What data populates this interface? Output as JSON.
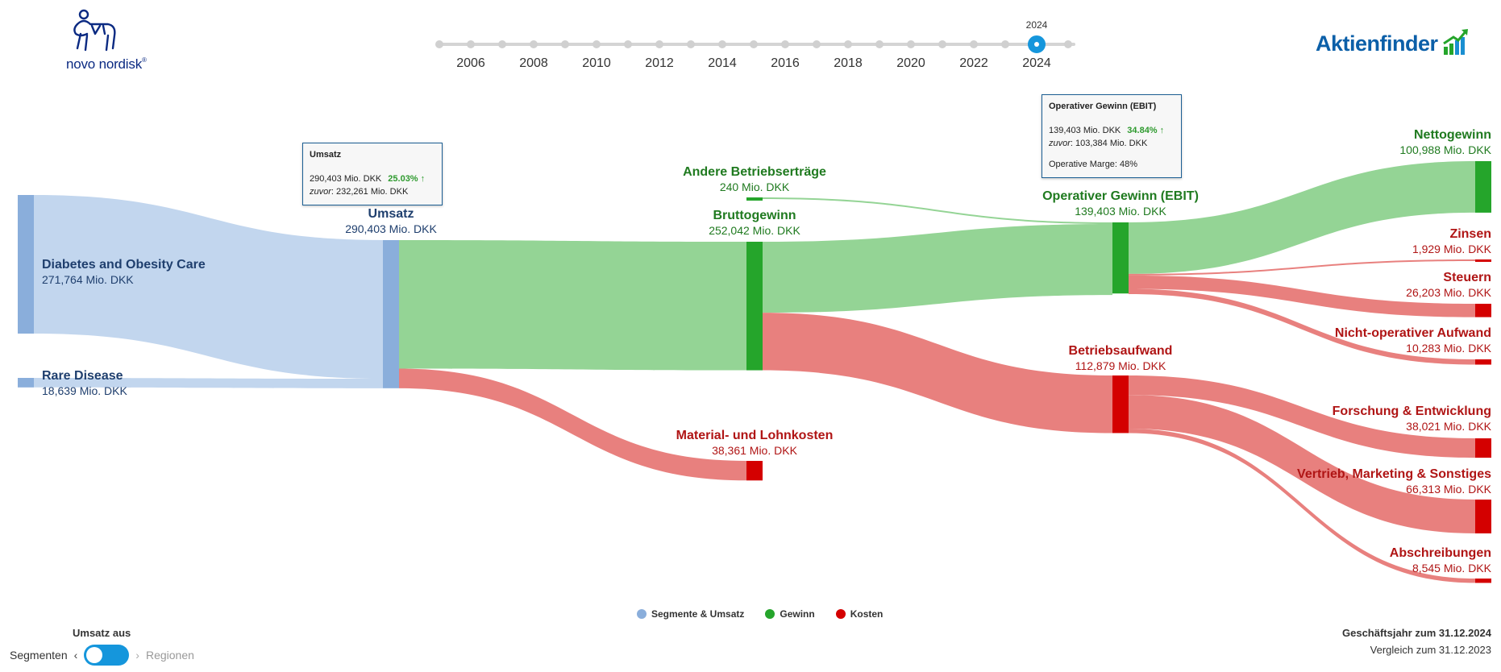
{
  "header": {
    "company_logo_text": "novo nordisk",
    "company_logo_reg": "®",
    "brand": "Aktienfinder"
  },
  "timeline": {
    "current_year": "2024",
    "year_labels": [
      "2006",
      "2008",
      "2010",
      "2012",
      "2014",
      "2016",
      "2018",
      "2020",
      "2022",
      "2024"
    ]
  },
  "colors": {
    "segment": "#8aaedb",
    "segment_flow": "#c2d6ee",
    "segment_text": "#1f3f6e",
    "profit": "#25a52b",
    "profit_flow": "#94d495",
    "profit_text": "#1f7a1f",
    "cost": "#d40000",
    "cost_flow": "#e8807e",
    "cost_text": "#b01515",
    "accent": "#1596dc"
  },
  "chart_data": {
    "type": "sankey",
    "unit": "Mio. DKK",
    "nodes": [
      {
        "id": "diabetes",
        "name": "Diabetes and Obesity Care",
        "value": 271764,
        "value_label": "271,764 Mio. DKK",
        "category": "segment"
      },
      {
        "id": "rare",
        "name": "Rare Disease",
        "value": 18639,
        "value_label": "18,639 Mio. DKK",
        "category": "segment"
      },
      {
        "id": "umsatz",
        "name": "Umsatz",
        "value": 290403,
        "value_label": "290,403 Mio. DKK",
        "category": "segment"
      },
      {
        "id": "andere",
        "name": "Andere Betriebserträge",
        "value": 240,
        "value_label": "240 Mio. DKK",
        "category": "profit"
      },
      {
        "id": "brutto",
        "name": "Bruttogewinn",
        "value": 252042,
        "value_label": "252,042 Mio. DKK",
        "category": "profit"
      },
      {
        "id": "material",
        "name": "Material- und Lohnkosten",
        "value": 38361,
        "value_label": "38,361 Mio. DKK",
        "category": "cost"
      },
      {
        "id": "ebit",
        "name": "Operativer Gewinn (EBIT)",
        "value": 139403,
        "value_label": "139,403 Mio. DKK",
        "category": "profit"
      },
      {
        "id": "betrieb",
        "name": "Betriebsaufwand",
        "value": 112879,
        "value_label": "112,879 Mio. DKK",
        "category": "cost"
      },
      {
        "id": "netto",
        "name": "Nettogewinn",
        "value": 100988,
        "value_label": "100,988 Mio. DKK",
        "category": "profit"
      },
      {
        "id": "zinsen",
        "name": "Zinsen",
        "value": 1929,
        "value_label": "1,929 Mio. DKK",
        "category": "cost"
      },
      {
        "id": "steuern",
        "name": "Steuern",
        "value": 26203,
        "value_label": "26,203 Mio. DKK",
        "category": "cost"
      },
      {
        "id": "nichtop",
        "name": "Nicht-operativer Aufwand",
        "value": 10283,
        "value_label": "10,283 Mio. DKK",
        "category": "cost"
      },
      {
        "id": "fue",
        "name": "Forschung & Entwicklung",
        "value": 38021,
        "value_label": "38,021 Mio. DKK",
        "category": "cost"
      },
      {
        "id": "vertrieb",
        "name": "Vertrieb, Marketing & Sonstiges",
        "value": 66313,
        "value_label": "66,313 Mio. DKK",
        "category": "cost"
      },
      {
        "id": "abschr",
        "name": "Abschreibungen",
        "value": 8545,
        "value_label": "8,545 Mio. DKK",
        "category": "cost"
      }
    ],
    "links": [
      {
        "source": "diabetes",
        "target": "umsatz",
        "value": 271764
      },
      {
        "source": "rare",
        "target": "umsatz",
        "value": 18639
      },
      {
        "source": "umsatz",
        "target": "brutto",
        "value": 252042
      },
      {
        "source": "umsatz",
        "target": "material",
        "value": 38361
      },
      {
        "source": "andere",
        "target": "ebit",
        "value": 240
      },
      {
        "source": "brutto",
        "target": "ebit",
        "value": 139163
      },
      {
        "source": "brutto",
        "target": "betrieb",
        "value": 112879
      },
      {
        "source": "ebit",
        "target": "netto",
        "value": 100988
      },
      {
        "source": "ebit",
        "target": "zinsen",
        "value": 1929
      },
      {
        "source": "ebit",
        "target": "steuern",
        "value": 26203
      },
      {
        "source": "ebit",
        "target": "nichtop",
        "value": 10283
      },
      {
        "source": "betrieb",
        "target": "fue",
        "value": 38021
      },
      {
        "source": "betrieb",
        "target": "vertrieb",
        "value": 66313
      },
      {
        "source": "betrieb",
        "target": "abschr",
        "value": 8545
      }
    ],
    "legend": [
      {
        "label": "Segmente & Umsatz",
        "category": "segment"
      },
      {
        "label": "Gewinn",
        "category": "profit"
      },
      {
        "label": "Kosten",
        "category": "cost"
      }
    ]
  },
  "tooltips": {
    "umsatz": {
      "title": "Umsatz",
      "value": "290,403 Mio. DKK",
      "change": "25.03% ↑",
      "prev_label": "zuvor",
      "prev_value": ": 232,261 Mio. DKK"
    },
    "ebit": {
      "title": "Operativer Gewinn (EBIT)",
      "value": "139,403 Mio. DKK",
      "change": "34.84% ↑",
      "prev_label": "zuvor",
      "prev_value": ": 103,384 Mio. DKK",
      "margin": "Operative Marge: 48%"
    }
  },
  "controls": {
    "toggle_title": "Umsatz aus",
    "toggle_left": "Segmenten",
    "toggle_right": "Regionen"
  },
  "footer": {
    "fiscal_year": "Geschäftsjahr zum 31.12.2024",
    "comparison": "Vergleich zum 31.12.2023"
  }
}
